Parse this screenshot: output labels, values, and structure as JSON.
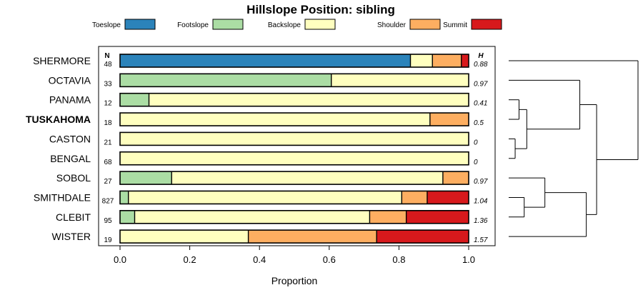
{
  "chart_data": {
    "type": "bar",
    "orientation": "horizontal",
    "stacked": true,
    "title": "Hillslope Position: sibling",
    "xlabel": "Proportion",
    "ylabel": "",
    "xlim": [
      0,
      1
    ],
    "x_ticks": [
      "0.0",
      "0.2",
      "0.4",
      "0.6",
      "0.8",
      "1.0"
    ],
    "legend_position": "top",
    "n_header": "N",
    "h_header": "H",
    "highlight_category": "TUSKAHOMA",
    "categories": [
      "SHERMORE",
      "OCTAVIA",
      "PANAMA",
      "TUSKAHOMA",
      "CASTON",
      "BENGAL",
      "SOBOL",
      "SMITHDALE",
      "CLEBIT",
      "WISTER"
    ],
    "n": [
      "48",
      "33",
      "12",
      "18",
      "21",
      "68",
      "27",
      "827",
      "95",
      "19"
    ],
    "h": [
      "0.88",
      "0.97",
      "0.41",
      "0.5",
      "0",
      "0",
      "0.97",
      "1.04",
      "1.36",
      "1.57"
    ],
    "series": [
      {
        "name": "Toeslope",
        "color": "#2b83ba",
        "values": [
          0.833,
          0,
          0,
          0,
          0,
          0,
          0,
          0,
          0,
          0
        ]
      },
      {
        "name": "Footslope",
        "color": "#abdda4",
        "values": [
          0,
          0.606,
          0.083,
          0,
          0,
          0,
          0.148,
          0.024,
          0.042,
          0
        ]
      },
      {
        "name": "Backslope",
        "color": "#ffffbf",
        "values": [
          0.063,
          0.394,
          0.917,
          0.889,
          1,
          1,
          0.778,
          0.784,
          0.674,
          0.368
        ]
      },
      {
        "name": "Shoulder",
        "color": "#fdae61",
        "values": [
          0.083,
          0,
          0,
          0.111,
          0,
          0,
          0.074,
          0.073,
          0.105,
          0.368
        ]
      },
      {
        "name": "Summit",
        "color": "#d7191c",
        "values": [
          0.021,
          0,
          0,
          0,
          0,
          0,
          0,
          0.119,
          0.179,
          0.264
        ]
      }
    ],
    "dendrogram": {
      "leaves": [
        "SHERMORE",
        "OCTAVIA",
        "PANAMA",
        "TUSKAHOMA",
        "CASTON",
        "BENGAL",
        "SOBOL",
        "SMITHDALE",
        "CLEBIT",
        "WISTER"
      ],
      "merges": [
        {
          "a": "CASTON",
          "b": "BENGAL",
          "height": 0.05
        },
        {
          "a": "PANAMA",
          "b": "TUSKAHOMA",
          "height": 0.08
        },
        {
          "a": "SMITHDALE",
          "b": "CLEBIT",
          "height": 0.12
        },
        {
          "a": "PANAMA+TUSKAHOMA",
          "b": "CASTON+BENGAL",
          "height": 0.14
        },
        {
          "a": "SOBOL",
          "b": "SMITHDALE+CLEBIT",
          "height": 0.28
        },
        {
          "a": "OCTAVIA",
          "b": "PANAMA+TUSKAHOMA+CASTON+BENGAL",
          "height": 0.55
        },
        {
          "a": "SOBOL+SMITHDALE+CLEBIT",
          "b": "WISTER",
          "height": 0.6
        },
        {
          "a": "OCTAVIA+PANAMA+TUSKAHOMA+CASTON+BENGAL",
          "b": "SOBOL+SMITHDALE+CLEBIT+WISTER",
          "height": 0.68
        },
        {
          "a": "SHERMORE",
          "b": "OCTAVIA+PANAMA+TUSKAHOMA+CASTON+BENGAL+SOBOL+SMITHDALE+CLEBIT+WISTER",
          "height": 1.0
        }
      ]
    }
  }
}
